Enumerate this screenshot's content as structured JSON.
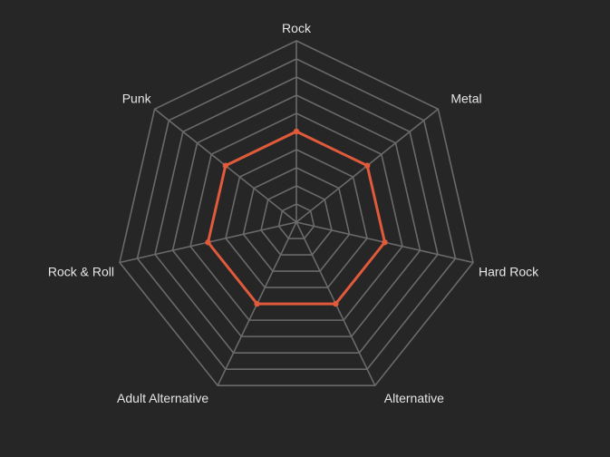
{
  "chart_data": {
    "type": "radar",
    "title": "",
    "axes": [
      "Rock",
      "Metal",
      "Hard Rock",
      "Alternative",
      "Adult Alternative",
      "Rock & Roll",
      "Punk"
    ],
    "rlim": [
      0,
      10
    ],
    "grid_levels": 10,
    "grid": true,
    "legend": "none",
    "series": [
      {
        "values": [
          5,
          5,
          5,
          5,
          5,
          5,
          5
        ],
        "color": "#e05a3c"
      }
    ]
  },
  "style": {
    "background": "#262626",
    "grid_color": "#6a6a6a",
    "label_color": "#e6e6e6"
  }
}
